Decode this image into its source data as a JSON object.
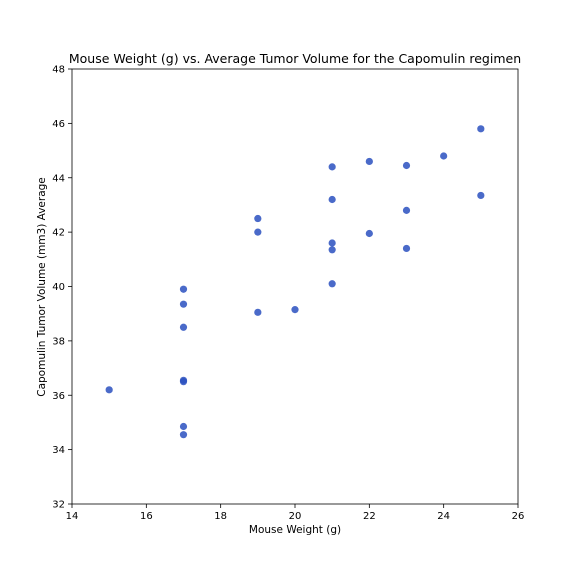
{
  "chart_data": {
    "type": "scatter",
    "title": "Mouse Weight (g) vs. Average Tumor Volume for the Capomulin regimen",
    "xlabel": "Mouse Weight (g)",
    "ylabel": "Capomulin Tumor Volume (mm3) Average",
    "xlim": [
      14,
      26
    ],
    "ylim": [
      32,
      48
    ],
    "x_ticks": [
      14,
      16,
      18,
      20,
      22,
      24,
      26
    ],
    "y_ticks": [
      32,
      34,
      36,
      38,
      40,
      42,
      44,
      46,
      48
    ],
    "grid": false,
    "marker_color": "#2a50c0",
    "series": [
      {
        "points": [
          {
            "x": 15,
            "y": 36.2
          },
          {
            "x": 17,
            "y": 39.9
          },
          {
            "x": 17,
            "y": 39.35
          },
          {
            "x": 17,
            "y": 38.5
          },
          {
            "x": 17,
            "y": 36.55
          },
          {
            "x": 17,
            "y": 36.5
          },
          {
            "x": 17,
            "y": 34.85
          },
          {
            "x": 17,
            "y": 34.55
          },
          {
            "x": 19,
            "y": 42.5
          },
          {
            "x": 19,
            "y": 42.0
          },
          {
            "x": 19,
            "y": 39.05
          },
          {
            "x": 20,
            "y": 39.15
          },
          {
            "x": 21,
            "y": 44.4
          },
          {
            "x": 21,
            "y": 43.2
          },
          {
            "x": 21,
            "y": 41.6
          },
          {
            "x": 21,
            "y": 41.35
          },
          {
            "x": 21,
            "y": 40.1
          },
          {
            "x": 22,
            "y": 44.6
          },
          {
            "x": 22,
            "y": 41.95
          },
          {
            "x": 23,
            "y": 44.45
          },
          {
            "x": 23,
            "y": 42.8
          },
          {
            "x": 23,
            "y": 41.4
          },
          {
            "x": 24,
            "y": 44.8
          },
          {
            "x": 25,
            "y": 45.8
          },
          {
            "x": 25,
            "y": 43.35
          }
        ]
      }
    ]
  }
}
